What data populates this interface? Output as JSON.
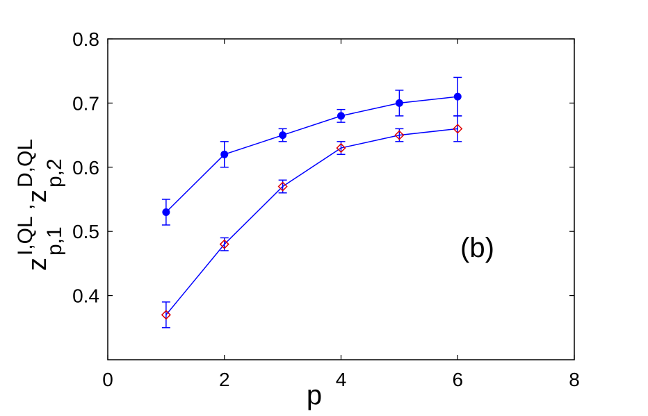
{
  "chart_data": {
    "type": "line",
    "xlabel": "p",
    "ylabel": {
      "z1": "z",
      "sup1": "I,QL",
      "sub1": "p,1",
      "comma": ",",
      "z2": "z",
      "sup2": "D,QL",
      "sub2": "p,2"
    },
    "annotation": "(b)",
    "xlim": [
      0,
      8
    ],
    "ylim": [
      0.3,
      0.8
    ],
    "xticks": [
      "0",
      "2",
      "4",
      "6",
      "8"
    ],
    "yticks": [
      "0.4",
      "0.5",
      "0.6",
      "0.7",
      "0.8"
    ],
    "x": [
      1,
      2,
      3,
      4,
      5,
      6
    ],
    "grid": false,
    "legend": "none",
    "series": [
      {
        "marker": "filled-circle",
        "color": "#0000ff",
        "values": [
          0.53,
          0.62,
          0.65,
          0.68,
          0.7,
          0.71
        ],
        "err": [
          0.02,
          0.02,
          0.01,
          0.01,
          0.02,
          0.03
        ]
      },
      {
        "marker": "open-diamond",
        "color": "#0000ff",
        "marker_color": "#e00000",
        "values": [
          0.37,
          0.48,
          0.57,
          0.63,
          0.65,
          0.66
        ],
        "err": [
          0.02,
          0.01,
          0.01,
          0.01,
          0.01,
          0.02
        ]
      }
    ]
  }
}
